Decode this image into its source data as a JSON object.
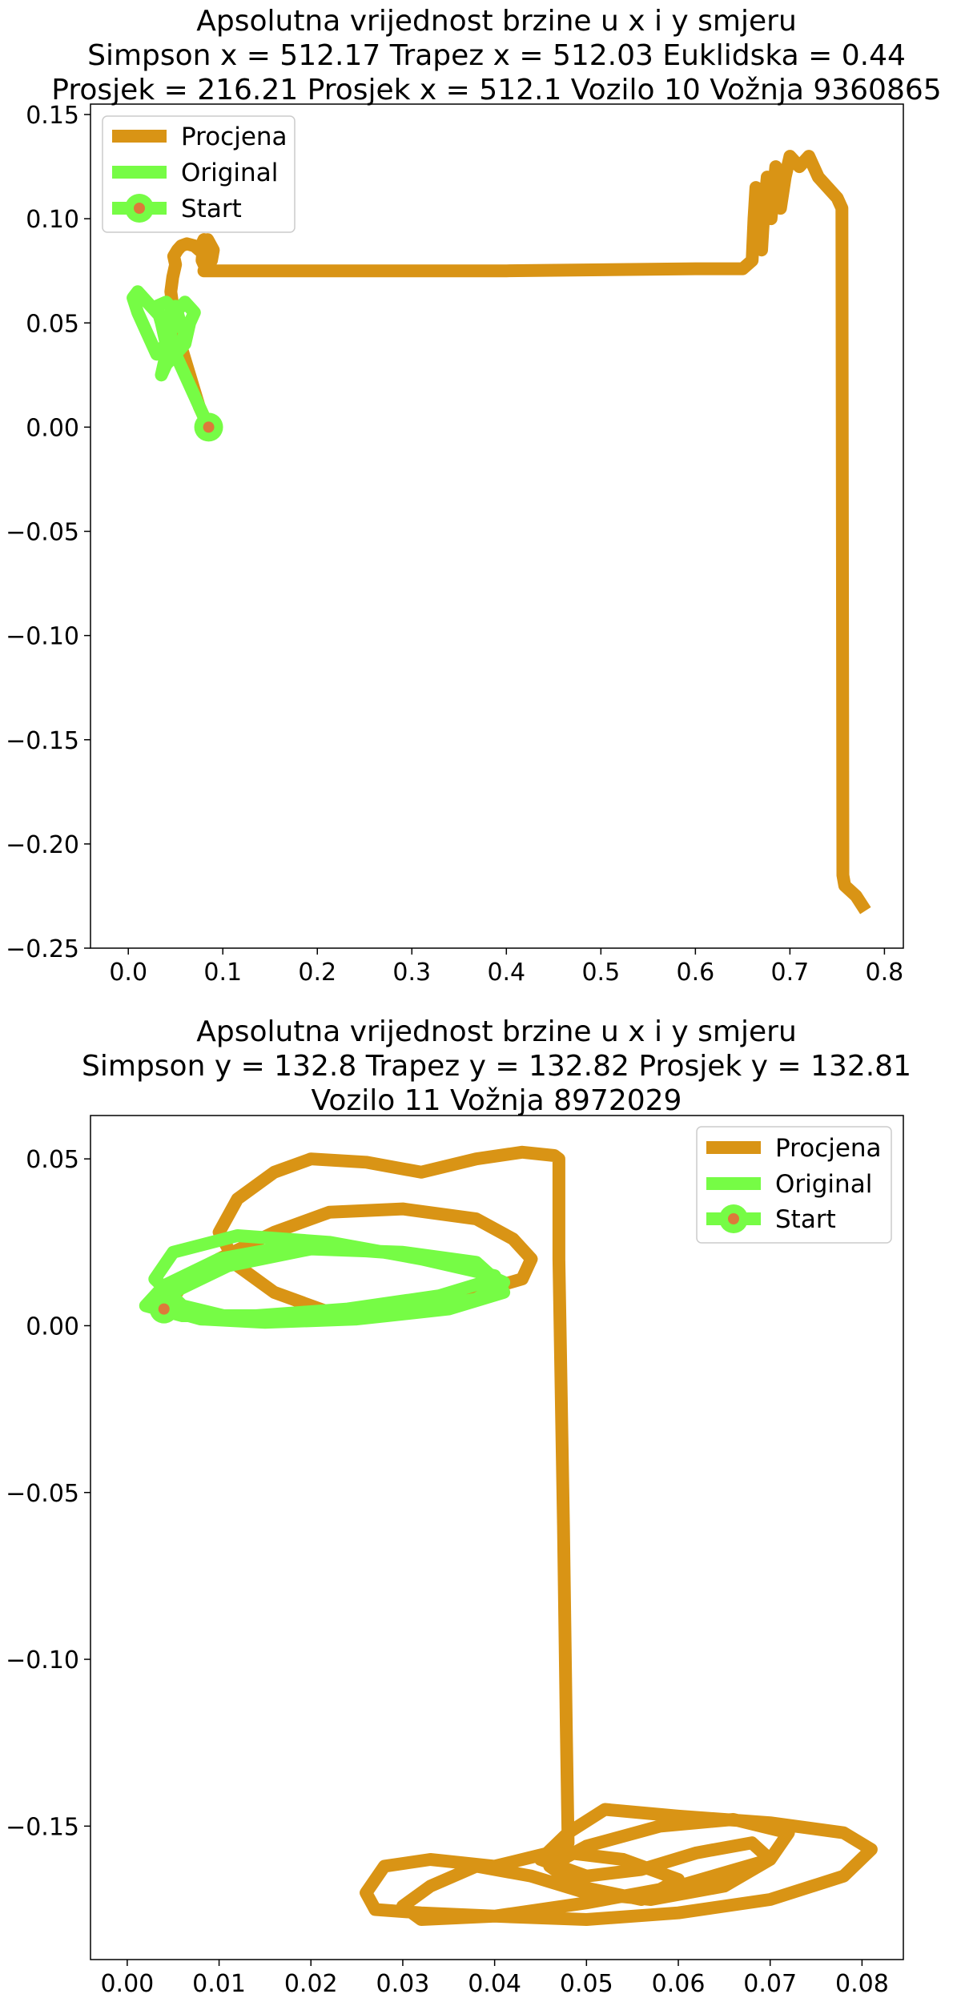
{
  "colors": {
    "estimate": "#d99415",
    "original": "#76fc45",
    "start_dot": "#dd7a3a",
    "frame": "#000000"
  },
  "chart_data": [
    {
      "type": "line",
      "title_lines": [
        "Apsolutna vrijednost brzine u x i y smjeru",
        "Simpson x = 512.17 Trapez x = 512.03 Euklidska = 0.44",
        "Prosjek = 216.21 Prosjek x = 512.1 Vozilo 10 Vožnja 9360865"
      ],
      "xlim": [
        -0.04,
        0.82
      ],
      "ylim": [
        -0.25,
        0.155
      ],
      "xticks": [
        "0.0",
        "0.1",
        "0.2",
        "0.3",
        "0.4",
        "0.5",
        "0.6",
        "0.7",
        "0.8"
      ],
      "yticks": [
        "0.15",
        "0.10",
        "0.05",
        "0.00",
        "−0.05",
        "−0.10",
        "−0.15",
        "−0.20",
        "−0.25"
      ],
      "legend": {
        "placement": "upper left",
        "entries": [
          "Procjena",
          "Original",
          "Start"
        ]
      },
      "series": [
        {
          "name": "Procjena",
          "x": [
            0.085,
            0.075,
            0.065,
            0.055,
            0.048,
            0.045,
            0.047,
            0.05,
            0.048,
            0.052,
            0.056,
            0.062,
            0.07,
            0.075,
            0.08,
            0.078,
            0.082,
            0.085,
            0.084,
            0.09,
            0.088,
            0.085,
            0.082,
            0.083,
            0.08,
            0.085,
            0.2,
            0.4,
            0.6,
            0.65,
            0.66,
            0.662,
            0.664,
            0.666,
            0.668,
            0.67,
            0.672,
            0.676,
            0.68,
            0.685,
            0.69,
            0.695,
            0.7,
            0.71,
            0.72,
            0.73,
            0.74,
            0.75,
            0.755,
            0.7555,
            0.756,
            0.758,
            0.77,
            0.78
          ],
          "y": [
            0.0,
            0.01,
            0.025,
            0.04,
            0.055,
            0.065,
            0.072,
            0.078,
            0.082,
            0.085,
            0.087,
            0.088,
            0.087,
            0.085,
            0.09,
            0.08,
            0.076,
            0.082,
            0.09,
            0.085,
            0.08,
            0.078,
            0.076,
            0.075,
            0.075,
            0.075,
            0.075,
            0.075,
            0.076,
            0.076,
            0.08,
            0.1,
            0.115,
            0.095,
            0.11,
            0.085,
            0.1,
            0.12,
            0.1,
            0.125,
            0.105,
            0.12,
            0.13,
            0.125,
            0.13,
            0.12,
            0.115,
            0.11,
            0.105,
            -0.05,
            -0.215,
            -0.22,
            -0.225,
            -0.232
          ]
        },
        {
          "name": "Original",
          "x": [
            0.085,
            0.08,
            0.07,
            0.06,
            0.05,
            0.04,
            0.035,
            0.04,
            0.045,
            0.04,
            0.03,
            0.02,
            0.01,
            0.005,
            0.01,
            0.02,
            0.03,
            0.04,
            0.035,
            0.045,
            0.05,
            0.055,
            0.06,
            0.055,
            0.05,
            0.06,
            0.065,
            0.07,
            0.06,
            0.05,
            0.045,
            0.04,
            0.035,
            0.03,
            0.04,
            0.05,
            0.055
          ],
          "y": [
            0.0,
            0.005,
            0.015,
            0.025,
            0.035,
            0.03,
            0.025,
            0.035,
            0.045,
            0.05,
            0.055,
            0.06,
            0.065,
            0.062,
            0.055,
            0.045,
            0.035,
            0.04,
            0.05,
            0.055,
            0.058,
            0.05,
            0.045,
            0.04,
            0.035,
            0.04,
            0.05,
            0.055,
            0.06,
            0.055,
            0.045,
            0.04,
            0.05,
            0.058,
            0.06,
            0.055,
            0.05
          ]
        }
      ],
      "start_point": {
        "x": 0.085,
        "y": 0.0
      }
    },
    {
      "type": "line",
      "title_lines": [
        "Apsolutna vrijednost brzine u x i y smjeru",
        "Simpson y = 132.8 Trapez y = 132.82 Prosjek y = 132.81",
        "Vozilo 11 Vožnja 8972029"
      ],
      "xlim": [
        -0.004,
        0.0845
      ],
      "ylim": [
        -0.19,
        0.063
      ],
      "xticks": [
        "0.00",
        "0.01",
        "0.02",
        "0.03",
        "0.04",
        "0.05",
        "0.06",
        "0.07",
        "0.08"
      ],
      "yticks": [
        "0.05",
        "0.00",
        "−0.05",
        "−0.10",
        "−0.15"
      ],
      "legend": {
        "placement": "upper right",
        "entries": [
          "Procjena",
          "Original",
          "Start"
        ]
      },
      "series": [
        {
          "name": "Procjena",
          "x": [
            0.004,
            0.006,
            0.01,
            0.016,
            0.022,
            0.03,
            0.038,
            0.042,
            0.044,
            0.043,
            0.038,
            0.03,
            0.022,
            0.016,
            0.012,
            0.01,
            0.012,
            0.016,
            0.02,
            0.026,
            0.032,
            0.038,
            0.043,
            0.0465,
            0.047,
            0.047,
            0.0475,
            0.0478,
            0.048,
            0.046,
            0.04,
            0.033,
            0.028,
            0.026,
            0.027,
            0.032,
            0.04,
            0.05,
            0.06,
            0.07,
            0.078,
            0.081,
            0.078,
            0.07,
            0.06,
            0.052,
            0.048,
            0.045,
            0.05,
            0.056,
            0.062,
            0.068,
            0.07,
            0.065,
            0.057,
            0.05,
            0.044,
            0.038,
            0.033,
            0.03,
            0.032,
            0.04,
            0.05,
            0.06,
            0.07,
            0.072,
            0.066,
            0.058,
            0.05,
            0.046,
            0.049,
            0.056,
            0.06,
            0.054,
            0.048
          ],
          "y": [
            0.005,
            0.012,
            0.02,
            0.028,
            0.034,
            0.035,
            0.032,
            0.026,
            0.02,
            0.014,
            0.01,
            0.006,
            0.004,
            0.01,
            0.018,
            0.028,
            0.038,
            0.046,
            0.05,
            0.049,
            0.046,
            0.05,
            0.052,
            0.051,
            0.05,
            0.02,
            -0.06,
            -0.12,
            -0.155,
            -0.158,
            -0.162,
            -0.16,
            -0.162,
            -0.17,
            -0.175,
            -0.176,
            -0.177,
            -0.178,
            -0.176,
            -0.172,
            -0.165,
            -0.157,
            -0.152,
            -0.149,
            -0.147,
            -0.145,
            -0.152,
            -0.16,
            -0.165,
            -0.163,
            -0.158,
            -0.155,
            -0.16,
            -0.168,
            -0.172,
            -0.17,
            -0.165,
            -0.162,
            -0.168,
            -0.174,
            -0.178,
            -0.177,
            -0.173,
            -0.168,
            -0.16,
            -0.152,
            -0.148,
            -0.15,
            -0.156,
            -0.162,
            -0.168,
            -0.172,
            -0.166,
            -0.16,
            -0.158
          ]
        },
        {
          "name": "Original",
          "x": [
            0.004,
            0.008,
            0.015,
            0.025,
            0.035,
            0.041,
            0.04,
            0.032,
            0.022,
            0.012,
            0.005,
            0.003,
            0.006,
            0.012,
            0.02,
            0.03,
            0.038,
            0.041,
            0.037,
            0.028,
            0.018,
            0.01,
            0.004,
            0.002,
            0.006,
            0.014,
            0.024,
            0.034,
            0.04,
            0.038,
            0.03,
            0.02,
            0.011,
            0.005
          ],
          "y": [
            0.005,
            0.002,
            0.001,
            0.002,
            0.005,
            0.01,
            0.015,
            0.02,
            0.025,
            0.027,
            0.022,
            0.014,
            0.006,
            0.002,
            0.002,
            0.004,
            0.008,
            0.013,
            0.018,
            0.022,
            0.024,
            0.02,
            0.012,
            0.006,
            0.003,
            0.003,
            0.005,
            0.009,
            0.014,
            0.019,
            0.022,
            0.023,
            0.018,
            0.01
          ]
        }
      ],
      "start_point": {
        "x": 0.004,
        "y": 0.005
      }
    }
  ]
}
